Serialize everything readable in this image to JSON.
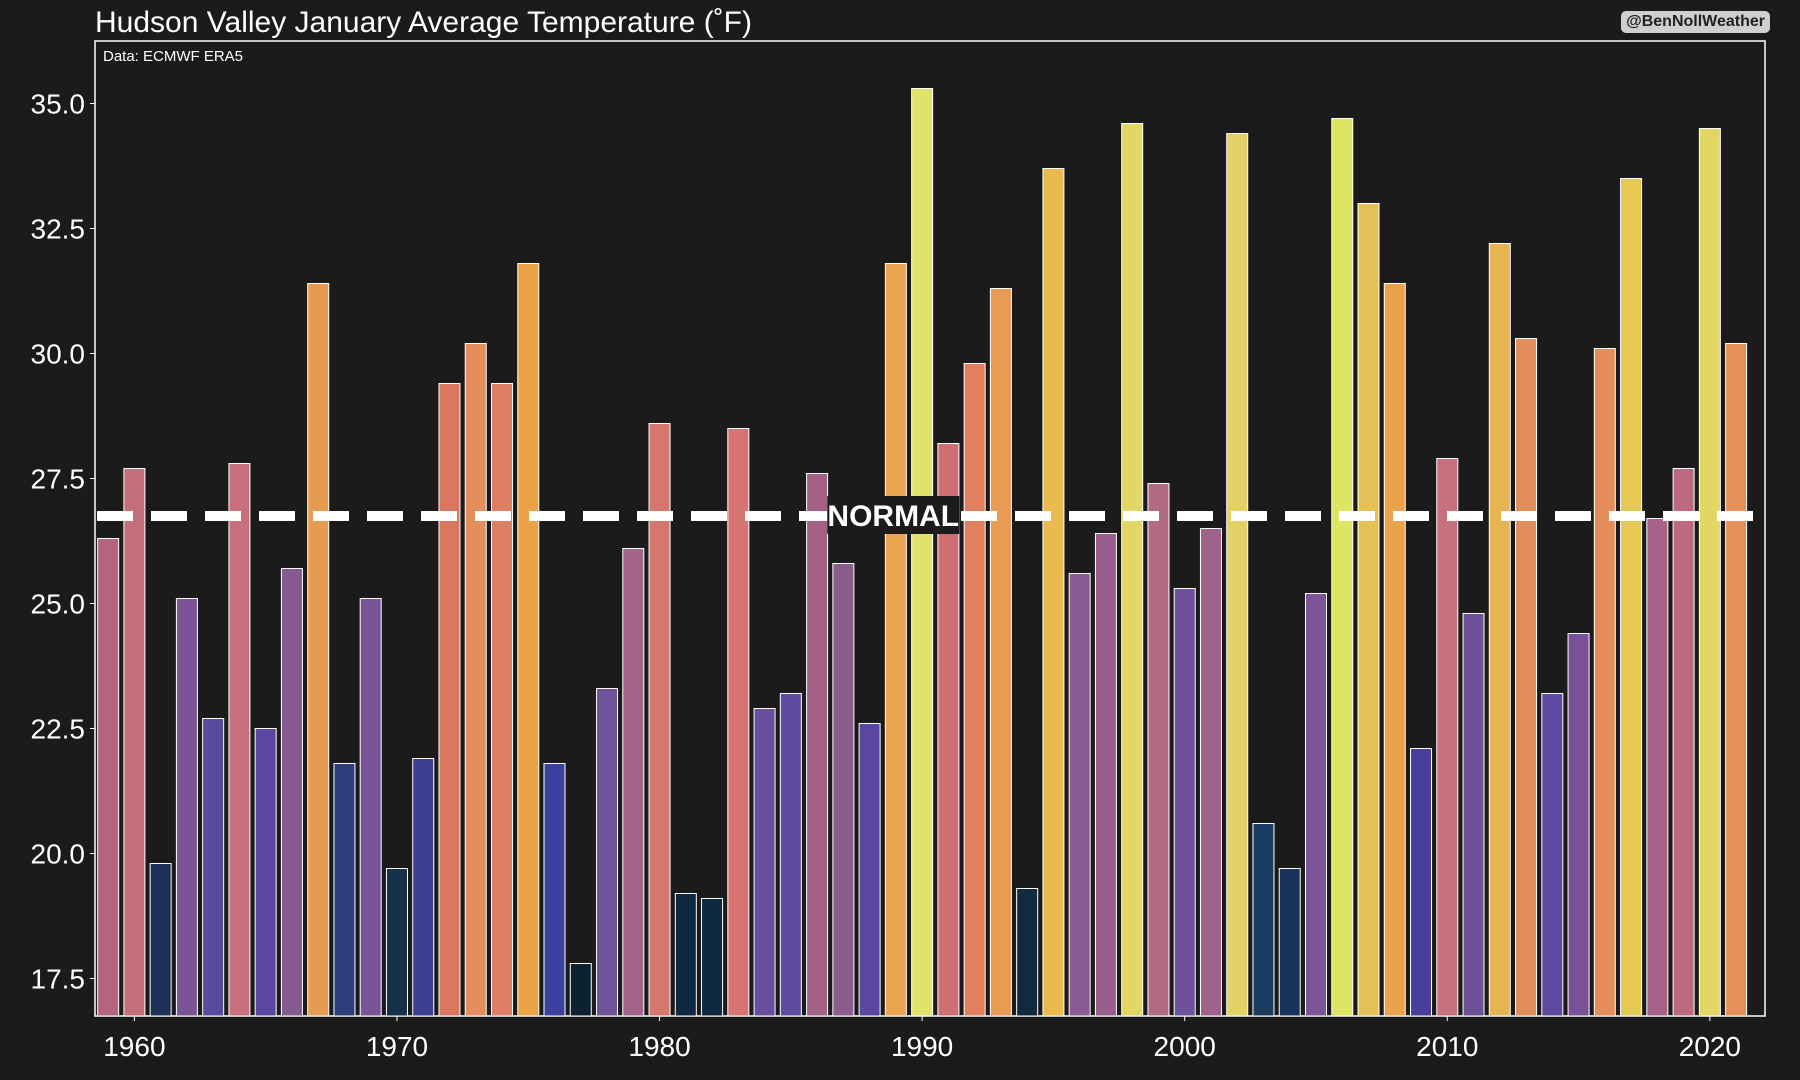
{
  "credit": "@BenNollWeather",
  "chart_data": {
    "type": "bar",
    "title": "Hudson Valley January Average Temperature (˚F)",
    "source_note": "Data: ECMWF ERA5",
    "xlabel": "",
    "ylabel": "",
    "ylim": [
      16.75,
      36.25
    ],
    "xlim": [
      1958.5,
      2022.1
    ],
    "y_ticks": [
      "17.5",
      "20.0",
      "22.5",
      "25.0",
      "27.5",
      "30.0",
      "32.5",
      "35.0"
    ],
    "x_ticks": [
      "1960",
      "1970",
      "1980",
      "1990",
      "2000",
      "2010",
      "2020"
    ],
    "grid": false,
    "legend": "none",
    "reference_line": {
      "value": 26.75,
      "label": "NORMAL",
      "style": "dashed",
      "color": "#ffffff"
    },
    "colormap": "plasma",
    "years": [
      1959,
      1960,
      1961,
      1962,
      1963,
      1964,
      1965,
      1966,
      1967,
      1968,
      1969,
      1970,
      1971,
      1972,
      1973,
      1974,
      1975,
      1976,
      1977,
      1978,
      1979,
      1980,
      1981,
      1982,
      1983,
      1984,
      1985,
      1986,
      1987,
      1988,
      1989,
      1990,
      1991,
      1992,
      1993,
      1994,
      1995,
      1996,
      1997,
      1998,
      1999,
      2000,
      2001,
      2002,
      2003,
      2004,
      2005,
      2006,
      2007,
      2008,
      2009,
      2010,
      2011,
      2012,
      2013,
      2014,
      2015,
      2016,
      2017,
      2018,
      2019,
      2020,
      2021
    ],
    "values": [
      26.3,
      27.7,
      19.8,
      25.1,
      22.7,
      27.8,
      22.5,
      25.7,
      31.4,
      21.8,
      25.1,
      19.7,
      21.9,
      29.4,
      30.2,
      29.4,
      31.8,
      21.8,
      17.8,
      23.3,
      26.1,
      28.6,
      19.2,
      19.1,
      28.5,
      22.9,
      23.2,
      27.6,
      25.8,
      22.6,
      31.8,
      35.3,
      28.2,
      29.8,
      31.3,
      19.3,
      33.7,
      25.6,
      26.4,
      34.6,
      27.4,
      25.3,
      26.5,
      34.4,
      20.6,
      19.7,
      25.2,
      34.7,
      33.0,
      31.4,
      22.1,
      27.9,
      24.8,
      32.2,
      30.3,
      23.2,
      24.4,
      30.1,
      33.5,
      26.7,
      27.7,
      34.5,
      30.2
    ],
    "colors": [
      "#b4647d",
      "#c4707c",
      "#1e3158",
      "#7a5495",
      "#584a9f",
      "#c8707c",
      "#5a48a0",
      "#855a90",
      "#e79a52",
      "#2e3f7b",
      "#7a5498",
      "#15304a",
      "#3e3f93",
      "#d9785f",
      "#e48e5c",
      "#dd7f64",
      "#eaa446",
      "#3c41a0",
      "#0b2232",
      "#705298",
      "#a36488",
      "#d4786e",
      "#0f2a40",
      "#0f2a40",
      "#d57470",
      "#6a4fa0",
      "#5f4ca0",
      "#a46186",
      "#8a5d8d",
      "#5a48a0",
      "#eba54e",
      "#dfe36a",
      "#cf6f73",
      "#e0805e",
      "#e99a53",
      "#112a3d",
      "#ebba4f",
      "#8a5a92",
      "#9a5e8c",
      "#e2d664",
      "#b06a84",
      "#6f509d",
      "#a0628a",
      "#e3d066",
      "#1c3c62",
      "#19335a",
      "#7b5596",
      "#dde563",
      "#e4c156",
      "#eaa24c",
      "#4a3e9c",
      "#c8707c",
      "#6d5199",
      "#e6b551",
      "#e28e5c",
      "#5e4aa0",
      "#7a5098",
      "#e58e5c",
      "#e6c955",
      "#a8628a",
      "#bd6a80",
      "#e2d664",
      "#e5905a"
    ]
  }
}
